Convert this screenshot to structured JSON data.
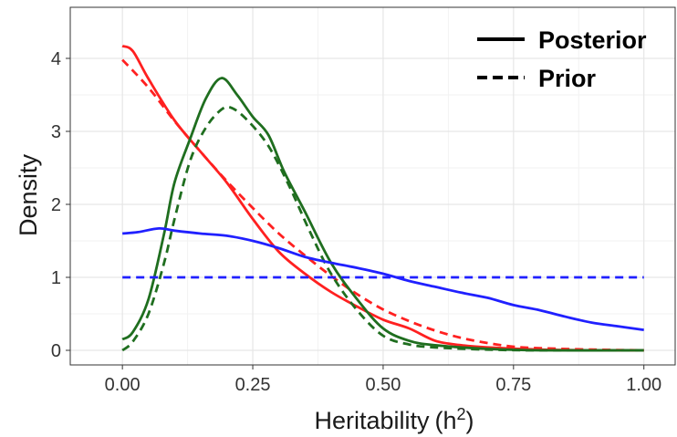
{
  "chart_data": {
    "type": "line",
    "title": "",
    "xlabel": "Heritability",
    "xlabel_symbol": "h",
    "xlabel_sup": "2",
    "ylabel": "Density",
    "xlim": [
      -0.1,
      1.06
    ],
    "ylim": [
      -0.2,
      4.7
    ],
    "x_ticks": [
      0.0,
      0.25,
      0.5,
      0.75,
      1.0
    ],
    "x_tick_labels": [
      "0.00",
      "0.25",
      "0.50",
      "0.75",
      "1.00"
    ],
    "y_ticks": [
      0,
      1,
      2,
      3,
      4
    ],
    "y_tick_labels": [
      "0",
      "1",
      "2",
      "3",
      "4"
    ],
    "grid": true,
    "legend": {
      "position": "top-right",
      "entries": [
        {
          "label": "Posterior",
          "style": "solid"
        },
        {
          "label": "Prior",
          "style": "dashed"
        }
      ]
    },
    "series": [
      {
        "color": "#ff2020",
        "style": "solid",
        "x": [
          0.0,
          0.02,
          0.05,
          0.1,
          0.15,
          0.2,
          0.25,
          0.3,
          0.35,
          0.4,
          0.45,
          0.5,
          0.55,
          0.6,
          0.65,
          0.7,
          0.8,
          0.9,
          1.0
        ],
        "y": [
          4.17,
          4.1,
          3.72,
          3.15,
          2.72,
          2.3,
          1.8,
          1.35,
          1.05,
          0.8,
          0.6,
          0.42,
          0.3,
          0.13,
          0.07,
          0.04,
          0.01,
          0.0,
          0.0
        ]
      },
      {
        "color": "#ff2020",
        "style": "dashed",
        "x": [
          0.0,
          0.05,
          0.1,
          0.15,
          0.2,
          0.25,
          0.3,
          0.35,
          0.4,
          0.45,
          0.5,
          0.55,
          0.6,
          0.65,
          0.7,
          0.75,
          0.8,
          0.9,
          1.0
        ],
        "y": [
          3.98,
          3.6,
          3.14,
          2.72,
          2.32,
          1.95,
          1.6,
          1.3,
          1.02,
          0.77,
          0.56,
          0.4,
          0.27,
          0.17,
          0.1,
          0.05,
          0.03,
          0.01,
          0.0
        ]
      },
      {
        "color": "#1f6e1f",
        "style": "solid",
        "x": [
          0.0,
          0.02,
          0.05,
          0.08,
          0.1,
          0.13,
          0.16,
          0.19,
          0.22,
          0.25,
          0.28,
          0.31,
          0.35,
          0.4,
          0.45,
          0.5,
          0.55,
          0.6,
          0.7,
          0.8,
          1.0
        ],
        "y": [
          0.15,
          0.25,
          0.7,
          1.6,
          2.3,
          2.9,
          3.45,
          3.73,
          3.5,
          3.2,
          2.95,
          2.45,
          1.9,
          1.2,
          0.7,
          0.3,
          0.13,
          0.07,
          0.02,
          0.0,
          0.0
        ]
      },
      {
        "color": "#1f6e1f",
        "style": "dashed",
        "x": [
          0.0,
          0.02,
          0.05,
          0.08,
          0.1,
          0.13,
          0.16,
          0.19,
          0.21,
          0.24,
          0.28,
          0.32,
          0.36,
          0.4,
          0.45,
          0.5,
          0.55,
          0.6,
          0.7,
          0.8,
          1.0
        ],
        "y": [
          0.0,
          0.12,
          0.5,
          1.2,
          1.8,
          2.6,
          3.05,
          3.3,
          3.32,
          3.15,
          2.8,
          2.25,
          1.62,
          1.05,
          0.55,
          0.2,
          0.08,
          0.04,
          0.01,
          0.0,
          0.0
        ]
      },
      {
        "color": "#2020ff",
        "style": "solid",
        "x": [
          0.0,
          0.03,
          0.07,
          0.1,
          0.15,
          0.2,
          0.25,
          0.3,
          0.35,
          0.4,
          0.45,
          0.5,
          0.55,
          0.6,
          0.65,
          0.7,
          0.75,
          0.8,
          0.85,
          0.9,
          0.95,
          1.0
        ],
        "y": [
          1.6,
          1.62,
          1.67,
          1.64,
          1.6,
          1.57,
          1.5,
          1.4,
          1.28,
          1.2,
          1.13,
          1.05,
          0.95,
          0.87,
          0.79,
          0.72,
          0.62,
          0.55,
          0.46,
          0.38,
          0.33,
          0.28
        ]
      },
      {
        "color": "#2020ff",
        "style": "dashed",
        "x": [
          0.0,
          1.0
        ],
        "y": [
          1.0,
          1.0
        ]
      }
    ]
  }
}
